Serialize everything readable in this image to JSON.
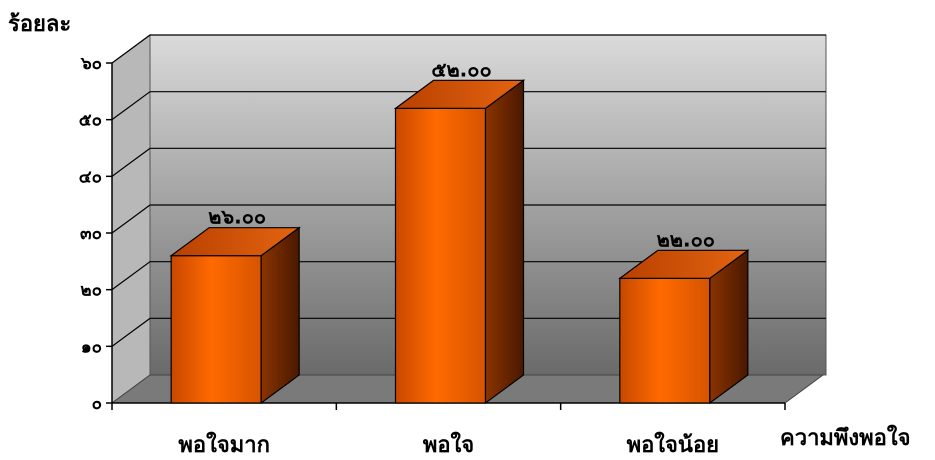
{
  "chart_data": {
    "type": "bar",
    "ylabel": "ร้อยละ",
    "xlabel": "ความพึงพอใจ",
    "categories": [
      "พอใจมาก",
      "พอใจ",
      "พอใจน้อย"
    ],
    "values": [
      26,
      52,
      22
    ],
    "data_labels": [
      "๒๖.๐๐",
      "๕๒.๐๐",
      "๒๒.๐๐"
    ],
    "ylim": [
      0,
      60
    ],
    "yticks": [
      0,
      10,
      20,
      30,
      40,
      50,
      60
    ],
    "ytick_labels": [
      "๐",
      "๑๐",
      "๒๐",
      "๓๐",
      "๔๐",
      "๕๐",
      "๖๐"
    ],
    "grid": true,
    "bar_color": "#ff6a00",
    "bar_side_color": "#7a2a00",
    "bar_top_color": "#d9520a"
  }
}
